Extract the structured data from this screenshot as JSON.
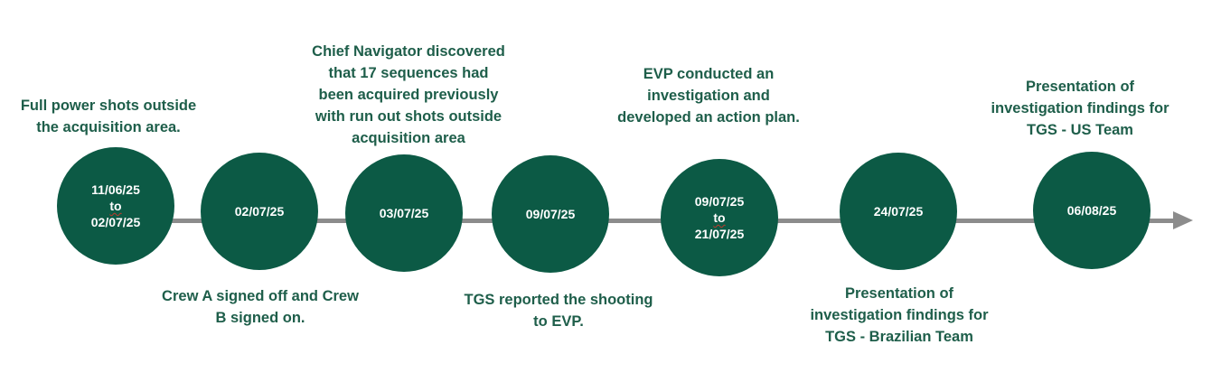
{
  "events": [
    {
      "date_lines": [
        "11/06/25",
        "to",
        "02/07/25"
      ],
      "label_lines": [
        "Full power shots outside",
        "the acquisition area."
      ],
      "label_position": "above"
    },
    {
      "date_lines": [
        "02/07/25"
      ],
      "label_lines": [
        "Crew A signed off and Crew",
        "B signed on."
      ],
      "label_position": "below"
    },
    {
      "date_lines": [
        "03/07/25"
      ],
      "label_lines": [
        "Chief Navigator discovered",
        "that 17 sequences had",
        "been acquired previously",
        "with run out shots outside",
        "acquisition area"
      ],
      "label_position": "above"
    },
    {
      "date_lines": [
        "09/07/25"
      ],
      "label_lines": [
        "TGS reported the shooting",
        "to EVP."
      ],
      "label_position": "below"
    },
    {
      "date_lines": [
        "09/07/25",
        "to",
        "21/07/25"
      ],
      "label_lines": [
        "EVP conducted an",
        "investigation and",
        "developed an action plan."
      ],
      "label_position": "above"
    },
    {
      "date_lines": [
        "24/07/25"
      ],
      "label_lines": [
        "Presentation of",
        "investigation findings for",
        "TGS - Brazilian Team"
      ],
      "label_position": "below"
    },
    {
      "date_lines": [
        "06/08/25"
      ],
      "label_lines": [
        "Presentation of",
        "investigation findings for",
        "TGS - US Team"
      ],
      "label_position": "above"
    }
  ],
  "colors": {
    "node_fill": "#0c5a45",
    "label_text": "#1e5e4a",
    "timeline": "#8c8c8c"
  }
}
